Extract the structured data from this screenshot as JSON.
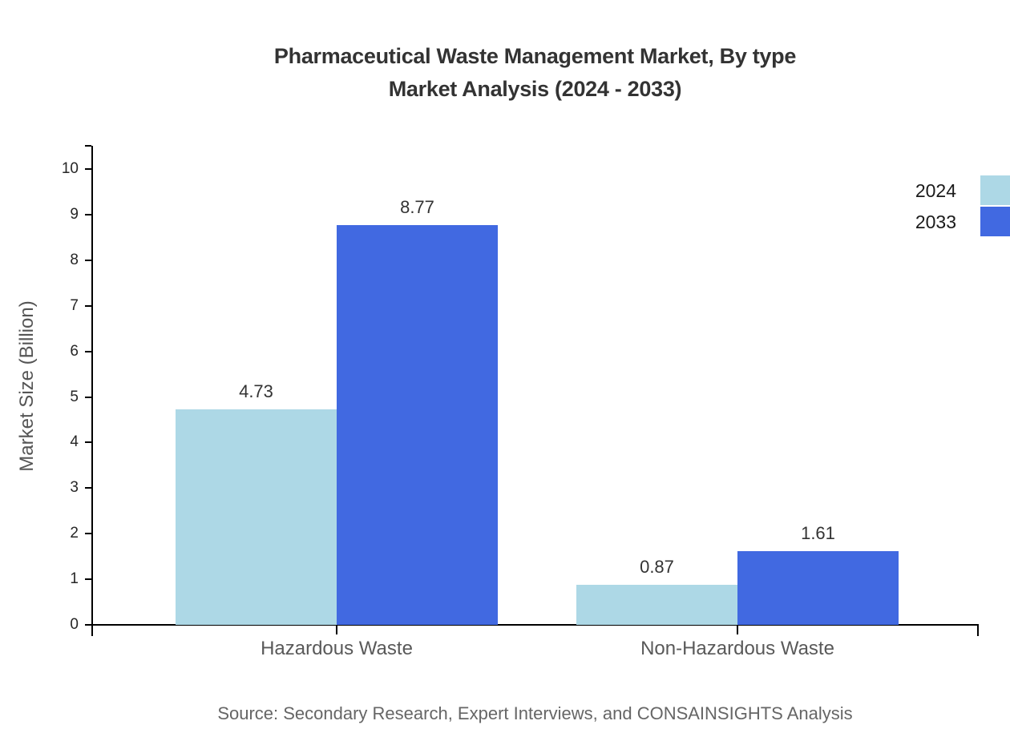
{
  "title": {
    "line1": "Pharmaceutical Waste Management Market, By type",
    "line2": "Market Analysis (2024 - 2033)"
  },
  "source": "Source: Secondary Research, Expert Interviews, and CONSAINSIGHTS Analysis",
  "chart_data": {
    "type": "bar",
    "categories": [
      "Hazardous Waste",
      "Non-Hazardous Waste"
    ],
    "series": [
      {
        "name": "2024",
        "color": "#ADD8E6",
        "values": [
          4.73,
          0.87
        ]
      },
      {
        "name": "2033",
        "color": "#4169E1",
        "values": [
          8.77,
          1.61
        ]
      }
    ],
    "value_labels": [
      [
        "4.73",
        "0.87"
      ],
      [
        "8.77",
        "1.61"
      ]
    ],
    "title": "Pharmaceutical Waste Management Market, By type Market Analysis (2024 - 2033)",
    "xlabel": "",
    "ylabel": "Market Size (Billion)",
    "ylim": [
      0,
      10
    ],
    "yticks": [
      0,
      1,
      2,
      3,
      4,
      5,
      6,
      7,
      8,
      9,
      10
    ],
    "grid": false,
    "legend_position": "top-right",
    "axis_color": "#000000"
  }
}
